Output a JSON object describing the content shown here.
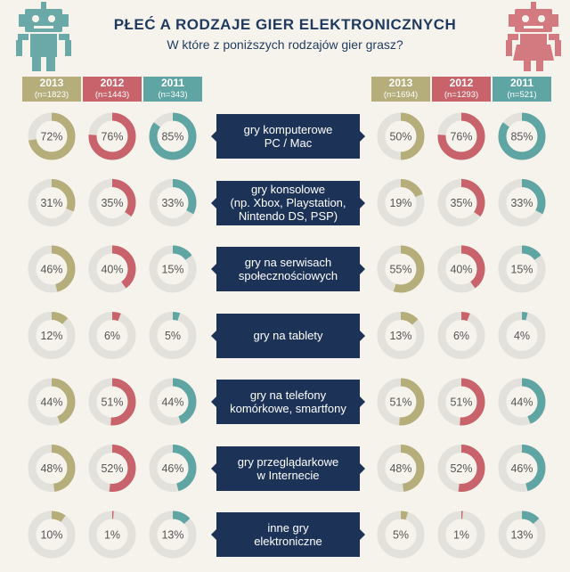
{
  "title": "PŁEĆ A RODZAJE GIER ELEKTRONICZNYCH",
  "subtitle": "W które z poniższych rodzajów gier grasz?",
  "colors": {
    "2013": "#b5ad7a",
    "2012": "#c9636b",
    "2011": "#5fa5a3",
    "track": "#e3e1dc",
    "male_robot": "#6aa9a8",
    "female_robot": "#d27a80"
  },
  "groups": {
    "left": {
      "icon": "male-robot-icon",
      "years": [
        {
          "year": "2013",
          "n": "(n=1823)"
        },
        {
          "year": "2012",
          "n": "(n=1443)"
        },
        {
          "year": "2011",
          "n": "(n=343)"
        }
      ]
    },
    "right": {
      "icon": "female-robot-icon",
      "years": [
        {
          "year": "2013",
          "n": "(n=1694)"
        },
        {
          "year": "2012",
          "n": "(n=1293)"
        },
        {
          "year": "2011",
          "n": "(n=521)"
        }
      ]
    }
  },
  "chart_data": {
    "type": "donut",
    "series": [
      "2013",
      "2012",
      "2011"
    ],
    "categories": [
      {
        "label": "gry komputerowe\nPC / Mac",
        "left": [
          72,
          76,
          85
        ],
        "right": [
          50,
          76,
          85
        ]
      },
      {
        "label": "gry konsolowe\n(np. Xbox, Playstation,\nNintendo DS, PSP)",
        "left": [
          31,
          35,
          33
        ],
        "right": [
          19,
          35,
          33
        ]
      },
      {
        "label": "gry na serwisach\nspołecznościowych",
        "left": [
          46,
          40,
          15
        ],
        "right": [
          55,
          40,
          15
        ]
      },
      {
        "label": "gry na tablety",
        "left": [
          12,
          6,
          5
        ],
        "right": [
          13,
          6,
          4
        ]
      },
      {
        "label": "gry na telefony\nkomórkowe, smartfony",
        "left": [
          44,
          51,
          44
        ],
        "right": [
          51,
          51,
          44
        ]
      },
      {
        "label": "gry przeglądarkowe\nw Internecie",
        "left": [
          48,
          52,
          46
        ],
        "right": [
          48,
          52,
          46
        ]
      },
      {
        "label": "inne gry\nelektroniczne",
        "left": [
          10,
          1,
          13
        ],
        "right": [
          5,
          1,
          13
        ]
      }
    ],
    "unit": "%"
  }
}
